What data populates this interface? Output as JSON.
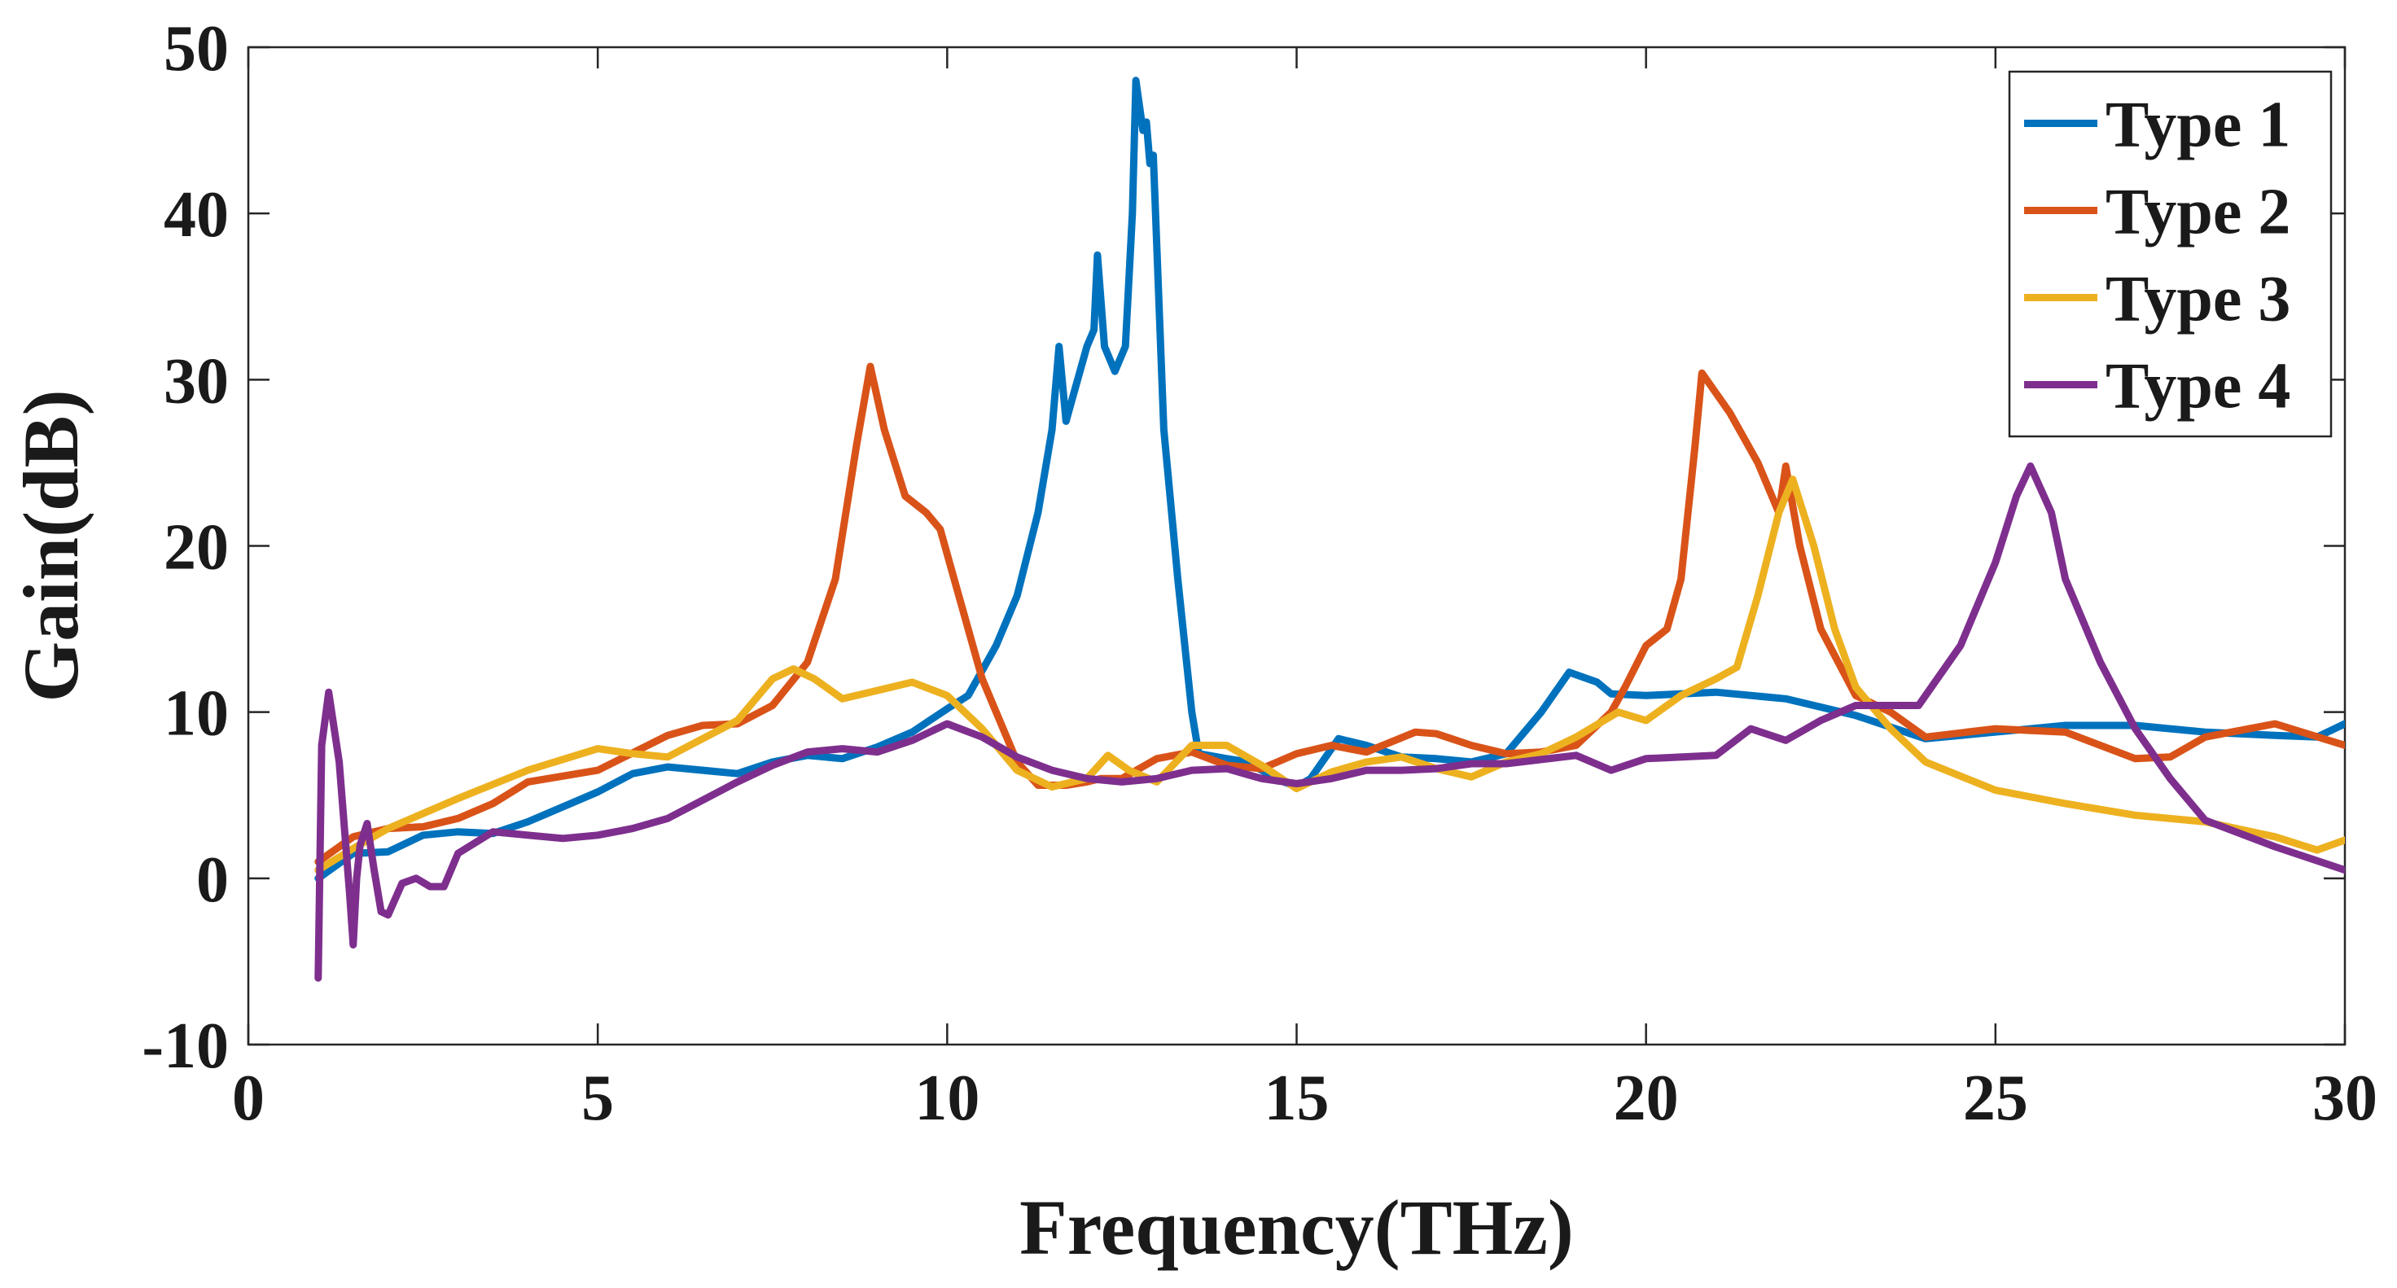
{
  "chart_data": {
    "type": "line",
    "title": "",
    "xlabel": "Frequency(THz)",
    "ylabel": "Gain(dB)",
    "xlim": [
      0,
      30
    ],
    "ylim": [
      -10,
      50
    ],
    "xticks": [
      0,
      5,
      10,
      15,
      20,
      25,
      30
    ],
    "yticks": [
      -10,
      0,
      10,
      20,
      30,
      40,
      50
    ],
    "grid": false,
    "legend_position": "top-right",
    "series": [
      {
        "name": "Type 1",
        "color": "#0072BD",
        "points": [
          [
            1,
            0
          ],
          [
            1.5,
            1.5
          ],
          [
            2,
            1.6
          ],
          [
            2.5,
            2.6
          ],
          [
            3,
            2.8
          ],
          [
            3.5,
            2.7
          ],
          [
            4,
            3.4
          ],
          [
            5,
            5.2
          ],
          [
            5.5,
            6.3
          ],
          [
            6,
            6.7
          ],
          [
            7,
            6.3
          ],
          [
            7.5,
            7.0
          ],
          [
            8,
            7.4
          ],
          [
            8.5,
            7.2
          ],
          [
            9,
            7.9
          ],
          [
            9.5,
            8.8
          ],
          [
            10,
            10.2
          ],
          [
            10.3,
            11.0
          ],
          [
            10.7,
            14
          ],
          [
            11,
            17
          ],
          [
            11.3,
            22
          ],
          [
            11.5,
            27
          ],
          [
            11.6,
            32
          ],
          [
            11.7,
            27.5
          ],
          [
            11.8,
            29
          ],
          [
            12.0,
            32
          ],
          [
            12.1,
            33
          ],
          [
            12.15,
            37.5
          ],
          [
            12.25,
            32
          ],
          [
            12.4,
            30.5
          ],
          [
            12.55,
            32
          ],
          [
            12.65,
            40
          ],
          [
            12.7,
            48
          ],
          [
            12.8,
            45
          ],
          [
            12.85,
            45.5
          ],
          [
            12.9,
            43
          ],
          [
            12.95,
            43.5
          ],
          [
            13.0,
            38
          ],
          [
            13.1,
            27
          ],
          [
            13.3,
            18
          ],
          [
            13.5,
            10
          ],
          [
            13.6,
            7.5
          ],
          [
            14,
            7.2
          ],
          [
            14.3,
            7.0
          ],
          [
            14.7,
            6.0
          ],
          [
            15,
            5.5
          ],
          [
            15.2,
            6
          ],
          [
            15.6,
            8.4
          ],
          [
            16,
            8.0
          ],
          [
            16.5,
            7.3
          ],
          [
            17,
            7.2
          ],
          [
            17.5,
            7.0
          ],
          [
            18,
            7.5
          ],
          [
            18.5,
            10
          ],
          [
            18.9,
            12.4
          ],
          [
            19.3,
            11.8
          ],
          [
            19.5,
            11.1
          ],
          [
            20,
            11.0
          ],
          [
            21,
            11.2
          ],
          [
            22,
            10.8
          ],
          [
            23,
            9.8
          ],
          [
            24,
            8.4
          ],
          [
            25,
            8.8
          ],
          [
            26,
            9.2
          ],
          [
            27,
            9.2
          ],
          [
            28,
            8.8
          ],
          [
            29,
            8.6
          ],
          [
            29.6,
            8.5
          ],
          [
            30,
            9.3
          ]
        ]
      },
      {
        "name": "Type 2",
        "color": "#D95319",
        "points": [
          [
            1,
            1.0
          ],
          [
            1.5,
            2.5
          ],
          [
            2,
            3.0
          ],
          [
            2.5,
            3.1
          ],
          [
            3,
            3.6
          ],
          [
            3.5,
            4.5
          ],
          [
            4,
            5.8
          ],
          [
            5,
            6.5
          ],
          [
            6,
            8.6
          ],
          [
            6.5,
            9.2
          ],
          [
            7,
            9.3
          ],
          [
            7.5,
            10.4
          ],
          [
            8,
            13
          ],
          [
            8.4,
            18
          ],
          [
            8.7,
            26
          ],
          [
            8.9,
            30.8
          ],
          [
            9.1,
            27
          ],
          [
            9.4,
            23
          ],
          [
            9.7,
            22
          ],
          [
            9.9,
            21
          ],
          [
            10.1,
            18
          ],
          [
            10.5,
            12
          ],
          [
            11,
            7.0
          ],
          [
            11.3,
            5.6
          ],
          [
            11.7,
            5.6
          ],
          [
            12,
            5.8
          ],
          [
            12.2,
            6.0
          ],
          [
            12.5,
            6.0
          ],
          [
            13,
            7.2
          ],
          [
            13.5,
            7.6
          ],
          [
            14,
            6.8
          ],
          [
            14.5,
            6.6
          ],
          [
            15,
            7.5
          ],
          [
            15.5,
            8.0
          ],
          [
            16,
            7.6
          ],
          [
            16.7,
            8.8
          ],
          [
            17,
            8.7
          ],
          [
            17.5,
            8.0
          ],
          [
            18,
            7.5
          ],
          [
            18.5,
            7.6
          ],
          [
            19,
            8.0
          ],
          [
            19.5,
            10
          ],
          [
            19.7,
            11.5
          ],
          [
            20,
            14
          ],
          [
            20.3,
            15
          ],
          [
            20.5,
            18
          ],
          [
            20.7,
            26
          ],
          [
            20.8,
            30.4
          ],
          [
            21.2,
            28
          ],
          [
            21.6,
            25
          ],
          [
            21.9,
            22
          ],
          [
            22,
            24.8
          ],
          [
            22.2,
            20
          ],
          [
            22.5,
            15
          ],
          [
            23,
            11
          ],
          [
            23.5,
            10
          ],
          [
            24,
            8.5
          ],
          [
            25,
            9.0
          ],
          [
            26,
            8.8
          ],
          [
            27,
            7.2
          ],
          [
            27.5,
            7.3
          ],
          [
            28,
            8.5
          ],
          [
            29,
            9.3
          ],
          [
            30,
            8.0
          ]
        ]
      },
      {
        "name": "Type 3",
        "color": "#EDB120",
        "points": [
          [
            1,
            0.5
          ],
          [
            1.5,
            1.8
          ],
          [
            2,
            3.0
          ],
          [
            3,
            4.8
          ],
          [
            4,
            6.5
          ],
          [
            5,
            7.8
          ],
          [
            5.5,
            7.5
          ],
          [
            6,
            7.3
          ],
          [
            7,
            9.5
          ],
          [
            7.5,
            12.0
          ],
          [
            7.8,
            12.6
          ],
          [
            8.1,
            12.0
          ],
          [
            8.5,
            10.8
          ],
          [
            9,
            11.3
          ],
          [
            9.5,
            11.8
          ],
          [
            10,
            11.0
          ],
          [
            10.5,
            9.0
          ],
          [
            11,
            6.5
          ],
          [
            11.5,
            5.5
          ],
          [
            12,
            6.0
          ],
          [
            12.3,
            7.4
          ],
          [
            12.6,
            6.5
          ],
          [
            13,
            5.8
          ],
          [
            13.5,
            8.0
          ],
          [
            14,
            8.0
          ],
          [
            14.5,
            6.8
          ],
          [
            15,
            5.4
          ],
          [
            15.5,
            6.4
          ],
          [
            16,
            7.0
          ],
          [
            16.5,
            7.3
          ],
          [
            17,
            6.6
          ],
          [
            17.5,
            6.1
          ],
          [
            18,
            7.0
          ],
          [
            18.5,
            7.5
          ],
          [
            19,
            8.5
          ],
          [
            19.6,
            10
          ],
          [
            20,
            9.5
          ],
          [
            20.5,
            11
          ],
          [
            21,
            12
          ],
          [
            21.3,
            12.7
          ],
          [
            21.6,
            17
          ],
          [
            21.9,
            22
          ],
          [
            22.1,
            24
          ],
          [
            22.4,
            20
          ],
          [
            22.7,
            15
          ],
          [
            23,
            11.5
          ],
          [
            23.5,
            9.0
          ],
          [
            24,
            7.0
          ],
          [
            25,
            5.3
          ],
          [
            26,
            4.5
          ],
          [
            27,
            3.8
          ],
          [
            28,
            3.4
          ],
          [
            29,
            2.5
          ],
          [
            29.6,
            1.7
          ],
          [
            30,
            2.3
          ]
        ]
      },
      {
        "name": "Type 4",
        "color": "#7E2F8E",
        "points": [
          [
            1,
            -6
          ],
          [
            1.05,
            8
          ],
          [
            1.15,
            11.2
          ],
          [
            1.3,
            7
          ],
          [
            1.45,
            -1
          ],
          [
            1.5,
            -4
          ],
          [
            1.55,
            0
          ],
          [
            1.6,
            2
          ],
          [
            1.7,
            3.3
          ],
          [
            1.8,
            0.5
          ],
          [
            1.9,
            -2
          ],
          [
            2.0,
            -2.2
          ],
          [
            2.2,
            -0.3
          ],
          [
            2.4,
            0
          ],
          [
            2.6,
            -0.5
          ],
          [
            2.8,
            -0.5
          ],
          [
            3.0,
            1.5
          ],
          [
            3.5,
            2.8
          ],
          [
            4,
            2.6
          ],
          [
            4.5,
            2.4
          ],
          [
            5,
            2.6
          ],
          [
            5.5,
            3.0
          ],
          [
            6,
            3.6
          ],
          [
            7,
            5.8
          ],
          [
            7.5,
            6.8
          ],
          [
            8,
            7.6
          ],
          [
            8.5,
            7.8
          ],
          [
            9,
            7.6
          ],
          [
            9.5,
            8.3
          ],
          [
            10,
            9.3
          ],
          [
            10.5,
            8.5
          ],
          [
            11,
            7.3
          ],
          [
            11.5,
            6.5
          ],
          [
            12,
            6.0
          ],
          [
            12.5,
            5.8
          ],
          [
            13,
            6.0
          ],
          [
            13.5,
            6.5
          ],
          [
            14,
            6.6
          ],
          [
            14.5,
            6.0
          ],
          [
            15,
            5.7
          ],
          [
            15.5,
            6.0
          ],
          [
            16,
            6.5
          ],
          [
            16.5,
            6.5
          ],
          [
            17,
            6.6
          ],
          [
            17.5,
            6.9
          ],
          [
            18,
            6.9
          ],
          [
            19,
            7.4
          ],
          [
            19.5,
            6.5
          ],
          [
            20,
            7.2
          ],
          [
            21,
            7.4
          ],
          [
            21.5,
            9.0
          ],
          [
            22,
            8.3
          ],
          [
            22.5,
            9.5
          ],
          [
            23,
            10.4
          ],
          [
            23.9,
            10.4
          ],
          [
            24.5,
            14
          ],
          [
            25,
            19
          ],
          [
            25.3,
            23
          ],
          [
            25.5,
            24.8
          ],
          [
            25.8,
            22
          ],
          [
            26,
            18
          ],
          [
            26.5,
            13
          ],
          [
            27,
            9
          ],
          [
            27.5,
            6
          ],
          [
            28,
            3.5
          ],
          [
            29,
            1.9
          ],
          [
            30,
            0.5
          ]
        ]
      }
    ]
  }
}
